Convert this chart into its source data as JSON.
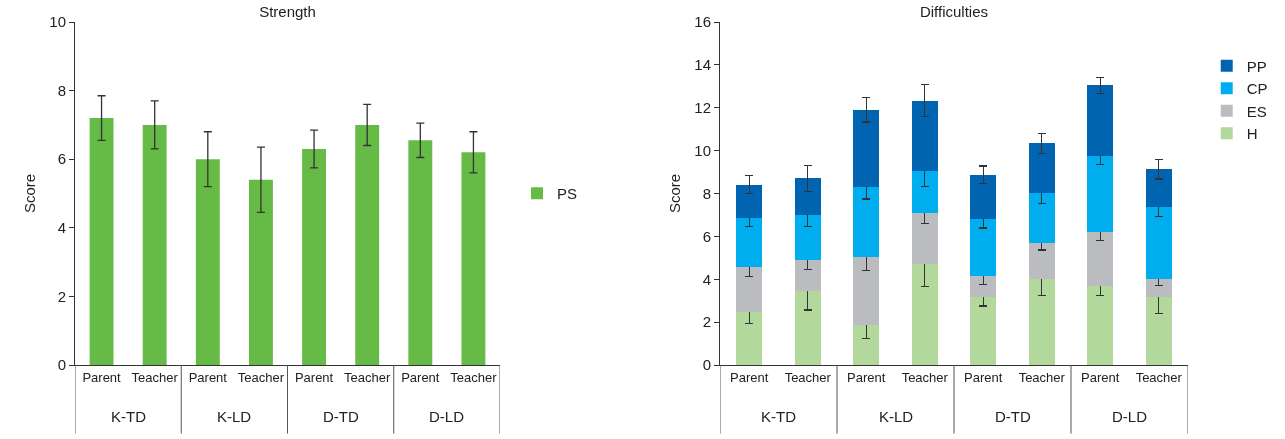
{
  "chart_data": [
    {
      "type": "bar",
      "title": "Strength",
      "ylabel": "Score",
      "categories": [
        "Parent",
        "Teacher",
        "Parent",
        "Teacher",
        "Parent",
        "Teacher",
        "Parent",
        "Teacher"
      ],
      "annotations": [
        "K-TD",
        "K-LD",
        "D-TD",
        "D-LD"
      ],
      "series": [
        {
          "name": "PS",
          "color": "#66bb47",
          "values": [
            7.2,
            7.0,
            6.0,
            5.4,
            6.3,
            7.0,
            6.55,
            6.2
          ],
          "errors": [
            0.65,
            0.7,
            0.8,
            0.95,
            0.55,
            0.6,
            0.5,
            0.6
          ]
        }
      ],
      "ylim": [
        0,
        10
      ],
      "yticks": [
        0,
        2,
        4,
        6,
        8,
        10
      ],
      "grid": false,
      "legend": "right"
    },
    {
      "type": "bar",
      "title": "Difficulties",
      "ylabel": "Score",
      "categories": [
        "Parent",
        "Teacher",
        "Parent",
        "Teacher",
        "Parent",
        "Teacher",
        "Parent",
        "Teacher"
      ],
      "annotations": [
        "K-TD",
        "K-LD",
        "D-TD",
        "D-LD"
      ],
      "stacked": true,
      "series": [
        {
          "name": "H",
          "color": "#b2d89c",
          "values": [
            2.47,
            3.43,
            1.85,
            4.7,
            3.15,
            4.01,
            3.68,
            3.15
          ],
          "errors": [
            0.55,
            0.86,
            0.6,
            1.03,
            0.4,
            0.77,
            0.45,
            0.75
          ]
        },
        {
          "name": "ES",
          "color": "#bbbcc0",
          "values": [
            2.08,
            1.45,
            3.17,
            2.41,
            0.98,
            1.67,
            2.52,
            0.86
          ],
          "errors": [
            0.43,
            0.43,
            0.6,
            0.51,
            0.39,
            0.31,
            0.39,
            0.3
          ]
        },
        {
          "name": "CP",
          "color": "#00aeef",
          "values": [
            2.33,
            2.14,
            3.3,
            1.96,
            2.66,
            2.33,
            3.54,
            3.38
          ],
          "errors": [
            0.43,
            0.57,
            0.58,
            0.75,
            0.4,
            0.47,
            0.39,
            0.47
          ]
        },
        {
          "name": "PP",
          "color": "#0064b0",
          "values": [
            1.54,
            1.68,
            3.59,
            3.26,
            2.09,
            2.33,
            3.3,
            1.74
          ],
          "errors": [
            0.43,
            0.61,
            0.57,
            0.75,
            0.4,
            0.47,
            0.37,
            0.46
          ]
        }
      ],
      "ylim": [
        0,
        16
      ],
      "yticks": [
        0,
        2,
        4,
        6,
        8,
        10,
        12,
        14,
        16
      ],
      "grid": false,
      "legend": "top right"
    }
  ]
}
